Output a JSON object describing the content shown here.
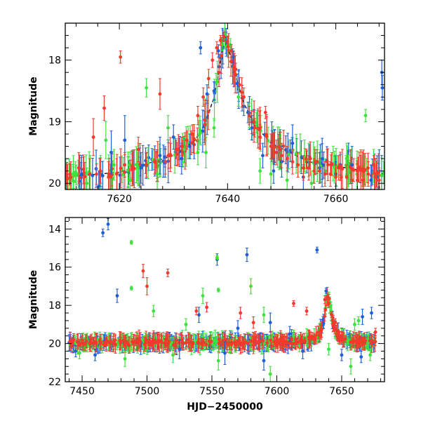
{
  "chart_data": [
    {
      "type": "scatter",
      "title": "",
      "xlabel": "",
      "ylabel": "Magnitude",
      "xlim": [
        7610,
        7669
      ],
      "ylim": [
        20.1,
        17.4
      ],
      "y_inverted": true,
      "x_ticks": [
        7620,
        7640,
        7660
      ],
      "y_ticks": [
        18,
        19,
        20
      ],
      "grid": false,
      "legend": "none",
      "series": [
        {
          "color": "#1f5fd6",
          "points": [
            [
              7613.0,
              19.85,
              0.3
            ],
            [
              7616.2,
              20.05,
              0.25
            ],
            [
              7618.5,
              19.5,
              0.35
            ],
            [
              7621.0,
              19.3,
              0.4
            ],
            [
              7624.0,
              19.75,
              0.25
            ],
            [
              7627.5,
              19.55,
              0.3
            ],
            [
              7630.0,
              19.25,
              0.2
            ],
            [
              7631.5,
              19.6,
              0.25
            ],
            [
              7633.0,
              19.4,
              0.2
            ],
            [
              7635.0,
              17.8,
              0.1
            ],
            [
              7636.2,
              18.55,
              0.15
            ],
            [
              7637.5,
              18.5,
              0.15
            ],
            [
              7638.3,
              17.85,
              0.1
            ],
            [
              7639.3,
              17.62,
              0.08
            ],
            [
              7641.0,
              17.95,
              0.1
            ],
            [
              7643.0,
              18.75,
              0.15
            ],
            [
              7644.5,
              19.1,
              0.2
            ],
            [
              7646.5,
              19.55,
              0.2
            ],
            [
              7648.5,
              19.8,
              0.2
            ],
            [
              7650.0,
              19.65,
              0.25
            ],
            [
              7652.0,
              19.35,
              0.3
            ],
            [
              7654.0,
              19.9,
              0.2
            ],
            [
              7657.0,
              19.75,
              0.25
            ],
            [
              7660.0,
              19.85,
              0.2
            ],
            [
              7663.0,
              19.7,
              0.3
            ],
            [
              7666.5,
              19.95,
              0.25
            ],
            [
              7668.5,
              18.2,
              0.2
            ],
            [
              7668.6,
              18.45,
              0.2
            ]
          ]
        },
        {
          "color": "#3fe03f",
          "points": [
            [
              7611.5,
              19.85,
              0.3
            ],
            [
              7614.0,
              20.0,
              0.25
            ],
            [
              7617.5,
              19.3,
              0.3
            ],
            [
              7619.0,
              19.7,
              0.25
            ],
            [
              7622.0,
              19.95,
              0.25
            ],
            [
              7625.0,
              18.45,
              0.15
            ],
            [
              7627.0,
              19.85,
              0.25
            ],
            [
              7629.0,
              19.1,
              0.2
            ],
            [
              7632.0,
              19.45,
              0.2
            ],
            [
              7634.5,
              19.5,
              0.2
            ],
            [
              7636.0,
              19.5,
              0.25
            ],
            [
              7637.5,
              19.1,
              0.15
            ],
            [
              7639.0,
              17.75,
              0.1
            ],
            [
              7640.5,
              17.75,
              0.1
            ],
            [
              7642.0,
              18.6,
              0.15
            ],
            [
              7644.0,
              18.9,
              0.2
            ],
            [
              7646.0,
              19.8,
              0.2
            ],
            [
              7648.0,
              19.85,
              0.25
            ],
            [
              7651.0,
              19.95,
              0.2
            ],
            [
              7655.5,
              20.0,
              0.2
            ],
            [
              7658.0,
              19.8,
              0.2
            ],
            [
              7662.0,
              19.6,
              0.25
            ],
            [
              7665.5,
              18.9,
              0.1
            ],
            [
              7667.0,
              19.65,
              0.2
            ]
          ]
        },
        {
          "color": "#f23b2c",
          "points": [
            [
              7611.0,
              19.9,
              0.25
            ],
            [
              7612.5,
              19.75,
              0.25
            ],
            [
              7614.5,
              19.85,
              0.25
            ],
            [
              7615.2,
              19.25,
              0.3
            ],
            [
              7616.5,
              19.8,
              0.2
            ],
            [
              7617.2,
              18.78,
              0.2
            ],
            [
              7618.0,
              19.9,
              0.25
            ],
            [
              7619.5,
              19.85,
              0.25
            ],
            [
              7620.2,
              17.95,
              0.1
            ],
            [
              7621.0,
              19.7,
              0.2
            ],
            [
              7622.5,
              19.75,
              0.25
            ],
            [
              7623.5,
              19.45,
              0.2
            ],
            [
              7625.0,
              19.7,
              0.2
            ],
            [
              7626.5,
              19.65,
              0.2
            ],
            [
              7627.5,
              18.55,
              0.25
            ],
            [
              7628.5,
              19.65,
              0.2
            ],
            [
              7629.5,
              19.55,
              0.2
            ],
            [
              7630.5,
              19.45,
              0.15
            ],
            [
              7631.5,
              19.4,
              0.15
            ],
            [
              7632.5,
              19.3,
              0.15
            ],
            [
              7633.5,
              19.2,
              0.15
            ],
            [
              7634.5,
              18.9,
              0.15
            ],
            [
              7635.5,
              18.6,
              0.15
            ],
            [
              7636.5,
              18.3,
              0.15
            ],
            [
              7637.2,
              18.0,
              0.12
            ],
            [
              7638.0,
              17.8,
              0.1
            ],
            [
              7638.7,
              17.68,
              0.08
            ],
            [
              7639.3,
              17.62,
              0.08
            ],
            [
              7640.0,
              17.7,
              0.08
            ],
            [
              7640.7,
              17.85,
              0.1
            ],
            [
              7641.5,
              18.15,
              0.1
            ],
            [
              7642.2,
              18.4,
              0.12
            ],
            [
              7643.0,
              18.6,
              0.15
            ],
            [
              7644.0,
              18.9,
              0.15
            ],
            [
              7645.0,
              19.1,
              0.15
            ],
            [
              7646.0,
              19.25,
              0.2
            ],
            [
              7647.0,
              18.85,
              0.1
            ],
            [
              7648.0,
              19.4,
              0.2
            ],
            [
              7649.0,
              19.5,
              0.2
            ],
            [
              7650.0,
              19.55,
              0.2
            ],
            [
              7651.0,
              19.6,
              0.2
            ],
            [
              7652.0,
              19.65,
              0.2
            ],
            [
              7653.0,
              19.7,
              0.2
            ],
            [
              7654.0,
              19.75,
              0.2
            ],
            [
              7655.0,
              19.75,
              0.2
            ],
            [
              7656.0,
              19.8,
              0.2
            ],
            [
              7657.0,
              19.8,
              0.2
            ],
            [
              7658.0,
              19.85,
              0.2
            ],
            [
              7659.0,
              19.85,
              0.2
            ],
            [
              7660.0,
              19.9,
              0.2
            ],
            [
              7661.0,
              19.9,
              0.2
            ],
            [
              7662.0,
              19.9,
              0.2
            ],
            [
              7663.0,
              19.95,
              0.2
            ],
            [
              7664.0,
              19.95,
              0.2
            ],
            [
              7665.0,
              19.95,
              0.2
            ],
            [
              7666.0,
              19.85,
              0.2
            ],
            [
              7667.0,
              19.7,
              0.15
            ],
            [
              7668.0,
              19.95,
              0.2
            ]
          ]
        }
      ],
      "model_curve": {
        "color": "#000000",
        "x": [
          7610,
          7620,
          7630,
          7634,
          7636,
          7637.5,
          7639.5,
          7641.5,
          7643,
          7645,
          7648,
          7655,
          7669
        ],
        "y": [
          19.9,
          19.82,
          19.55,
          19.3,
          19.0,
          18.6,
          17.6,
          18.25,
          18.7,
          19.05,
          19.35,
          19.65,
          19.85
        ]
      }
    },
    {
      "type": "scatter",
      "title": "",
      "xlabel": "HJD−2450000",
      "ylabel": "Magnitude",
      "xlim": [
        7437,
        7683
      ],
      "ylim": [
        22,
        13.4
      ],
      "y_inverted": true,
      "x_ticks": [
        7450,
        7500,
        7550,
        7600,
        7650
      ],
      "y_ticks": [
        14,
        16,
        18,
        20,
        22
      ],
      "grid": false,
      "legend": "none",
      "series": [
        {
          "color": "#1f5fd6",
          "points": [
            [
              7466.0,
              14.2,
              0.2
            ],
            [
              7470.0,
              13.75,
              0.3
            ],
            [
              7477.0,
              17.5,
              0.35
            ],
            [
              7554.0,
              15.6,
              0.3
            ],
            [
              7577.0,
              15.35,
              0.35
            ],
            [
              7631.0,
              15.1,
              0.15
            ],
            [
              7638.0,
              17.25,
              0.15
            ],
            [
              7540.0,
              18.5,
              0.4
            ],
            [
              7570.0,
              19.2,
              0.4
            ],
            [
              7595.0,
              18.9,
              0.5
            ],
            [
              7610.0,
              19.5,
              0.4
            ],
            [
              7666.0,
              18.6,
              0.4
            ],
            [
              7673.0,
              18.4,
              0.3
            ],
            [
              7445.0,
              20.4,
              0.3
            ],
            [
              7460.0,
              20.6,
              0.3
            ],
            [
              7525.0,
              20.3,
              0.5
            ],
            [
              7560.0,
              20.5,
              0.6
            ],
            [
              7590.0,
              20.9,
              0.5
            ],
            [
              7620.0,
              20.4,
              0.4
            ],
            [
              7650.0,
              20.6,
              0.3
            ],
            [
              7665.0,
              20.7,
              0.3
            ]
          ]
        },
        {
          "color": "#3fe03f",
          "points": [
            [
              7488.0,
              14.7,
              0.1
            ],
            [
              7488.0,
              17.1,
              0.1
            ],
            [
              7505.0,
              18.3,
              0.3
            ],
            [
              7530.0,
              19.0,
              0.3
            ],
            [
              7543.0,
              17.5,
              0.4
            ],
            [
              7554.0,
              15.5,
              0.1
            ],
            [
              7555.0,
              17.2,
              0.1
            ],
            [
              7580.0,
              17.0,
              0.4
            ],
            [
              7590.0,
              18.5,
              0.4
            ],
            [
              7613.0,
              19.6,
              0.3
            ],
            [
              7660.0,
              19.0,
              0.3
            ],
            [
              7663.0,
              18.8,
              0.2
            ],
            [
              7448.0,
              20.5,
              0.3
            ],
            [
              7483.0,
              20.8,
              0.4
            ],
            [
              7520.0,
              20.6,
              0.4
            ],
            [
              7555.0,
              20.9,
              0.5
            ],
            [
              7595.0,
              21.6,
              0.4
            ],
            [
              7640.0,
              20.3,
              0.3
            ],
            [
              7657.0,
              21.2,
              0.4
            ],
            [
              7672.0,
              20.6,
              0.3
            ]
          ]
        },
        {
          "color": "#f23b2c",
          "points": [
            [
              7497.0,
              16.2,
              0.35
            ],
            [
              7500.0,
              17.0,
              0.45
            ],
            [
              7516.0,
              16.3,
              0.2
            ],
            [
              7538.0,
              18.3,
              0.2
            ],
            [
              7546.0,
              18.1,
              0.25
            ],
            [
              7572.0,
              18.4,
              0.3
            ],
            [
              7582.0,
              18.9,
              0.3
            ],
            [
              7613.0,
              17.9,
              0.15
            ],
            [
              7623.0,
              18.3,
              0.2
            ],
            [
              7637.0,
              17.7,
              0.2
            ],
            [
              7640.0,
              17.9,
              0.2
            ],
            [
              7645.0,
              18.9,
              0.2
            ],
            [
              7676.0,
              19.4,
              0.2
            ]
          ]
        }
      ],
      "dense_band": [
        {
          "color": "#1f5fd6",
          "x_range": [
            7440,
            7676
          ],
          "y_center": 20.0
        },
        {
          "color": "#3fe03f",
          "x_range": [
            7440,
            7676
          ],
          "y_center": 20.0
        },
        {
          "color": "#f23b2c",
          "x_range": [
            7440,
            7676
          ],
          "y_center": 20.0
        }
      ],
      "peak": {
        "x": 7639.5,
        "y": 17.65,
        "baseline": 19.95
      }
    }
  ]
}
